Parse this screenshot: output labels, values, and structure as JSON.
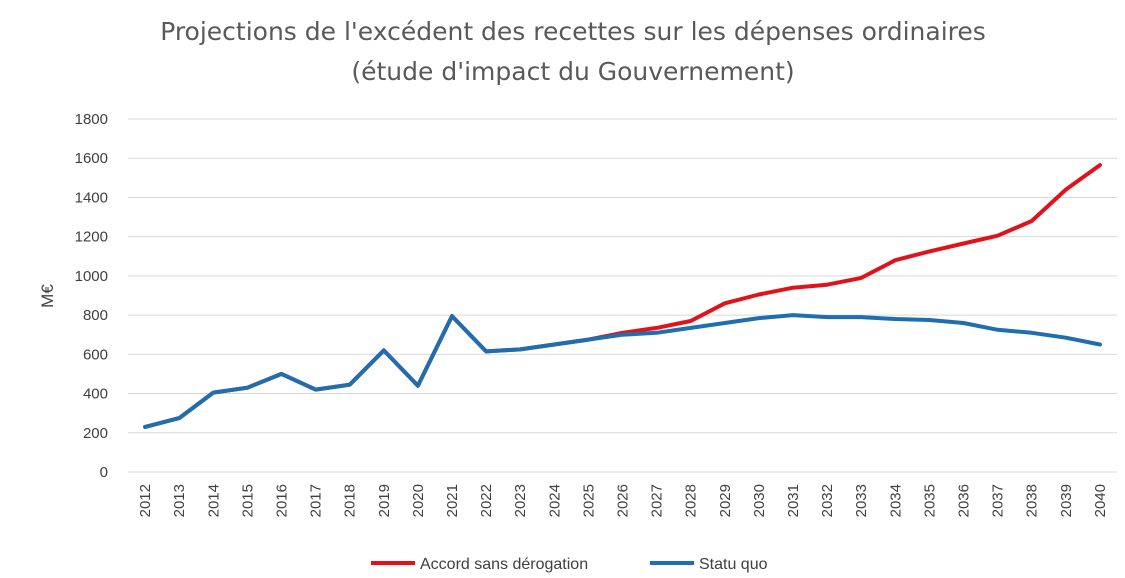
{
  "chart_data": {
    "type": "line",
    "title": [
      "Projections de l'excédent des recettes sur les dépenses ordinaires",
      "(étude d'impact du Gouvernement)"
    ],
    "xlabel": "",
    "ylabel": "M€",
    "ylim": [
      0,
      1800
    ],
    "yticks": [
      0,
      200,
      400,
      600,
      800,
      1000,
      1200,
      1400,
      1600,
      1800
    ],
    "grid": true,
    "legend_position": "bottom",
    "categories": [
      "2012",
      "2013",
      "2014",
      "2015",
      "2016",
      "2017",
      "2018",
      "2019",
      "2020",
      "2021",
      "2022",
      "2023",
      "2024",
      "2025",
      "2026",
      "2027",
      "2028",
      "2029",
      "2030",
      "2031",
      "2032",
      "2033",
      "2034",
      "2035",
      "2036",
      "2037",
      "2038",
      "2039",
      "2040"
    ],
    "series": [
      {
        "name": "Accord sans dérogation",
        "color": "#e0131b",
        "values": [
          230,
          275,
          405,
          430,
          500,
          420,
          445,
          620,
          440,
          795,
          615,
          625,
          650,
          675,
          710,
          735,
          770,
          860,
          905,
          940,
          955,
          990,
          1080,
          1125,
          1165,
          1205,
          1280,
          1440,
          1565
        ]
      },
      {
        "name": "Statu quo",
        "color": "#1f6eb0",
        "values": [
          230,
          275,
          405,
          430,
          500,
          420,
          445,
          620,
          440,
          795,
          615,
          625,
          650,
          675,
          700,
          710,
          735,
          760,
          785,
          800,
          790,
          790,
          780,
          775,
          760,
          725,
          710,
          685,
          650
        ]
      }
    ]
  }
}
